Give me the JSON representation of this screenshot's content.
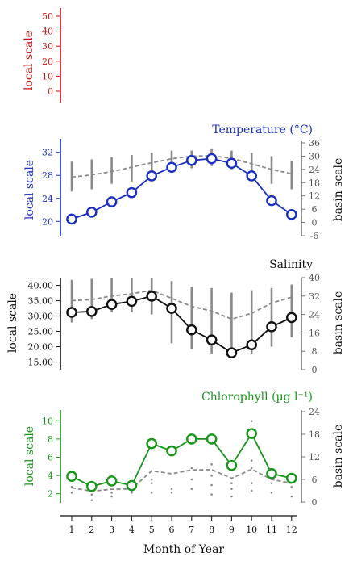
{
  "x_axis": {
    "label": "Month of Year",
    "ticks": [
      "1",
      "2",
      "3",
      "4",
      "5",
      "6",
      "7",
      "8",
      "9",
      "10",
      "11",
      "12"
    ]
  },
  "colors": {
    "red": "#cc1111",
    "blue": "#1a2fbf",
    "black": "#111111",
    "green": "#18951b",
    "gray": "#8a8a8a"
  },
  "panels": [
    {
      "id": "top",
      "title": "",
      "color": "#cc1111",
      "left_label": "local scale",
      "left_ticks": [
        "0",
        "10",
        "20",
        "30",
        "40",
        "50"
      ],
      "left_range": [
        0,
        50
      ],
      "right_label": "",
      "right_ticks": [],
      "right_range": null
    },
    {
      "id": "temperature",
      "title": "Temperature (°C)",
      "color": "#1a2fbf",
      "left_label": "local scale",
      "left_ticks": [
        "20",
        "24",
        "28",
        "32"
      ],
      "left_range": [
        18.5,
        33.5
      ],
      "right_label": "basin scale",
      "right_ticks": [
        "-6",
        "0",
        "6",
        "12",
        "18",
        "24",
        "30",
        "36"
      ],
      "right_range": [
        -6,
        36
      ]
    },
    {
      "id": "salinity",
      "title": "Salinity",
      "color": "#111111",
      "left_label": "local scale",
      "left_ticks": [
        "15.00",
        "20.00",
        "25.00",
        "30.00",
        "35.00",
        "40.00"
      ],
      "left_range": [
        12.5,
        42
      ],
      "right_label": "basin scale",
      "right_ticks": [
        "0",
        "8",
        "16",
        "24",
        "32",
        "40"
      ],
      "right_range": [
        0,
        40
      ]
    },
    {
      "id": "chlorophyll",
      "title": "Chlorophyll (µg l⁻¹)",
      "color": "#18951b",
      "left_label": "local scale",
      "left_ticks": [
        "2",
        "4",
        "6",
        "8",
        "10"
      ],
      "left_range": [
        1,
        11
      ],
      "right_label": "basin scale",
      "right_ticks": [
        "0",
        "6",
        "12",
        "18",
        "24"
      ],
      "right_range": [
        0,
        24
      ]
    }
  ],
  "chart_data": [
    {
      "type": "line",
      "title": "",
      "ylabel": "local scale",
      "ylim": [
        0,
        50
      ],
      "x": [],
      "series": []
    },
    {
      "type": "line",
      "title": "Temperature (°C)",
      "xlabel": "Month of Year",
      "ylabel": "local scale",
      "y2label": "basin scale",
      "ylim": [
        18.5,
        33.5
      ],
      "y2lim": [
        -6,
        36
      ],
      "x": [
        1,
        2,
        3,
        4,
        5,
        6,
        7,
        8,
        9,
        10,
        11,
        12
      ],
      "series": [
        {
          "axis": "left",
          "style": "line-markers",
          "color": "#1a2fbf",
          "values": [
            20.4,
            21.6,
            23.4,
            25.0,
            27.9,
            29.4,
            30.6,
            30.9,
            30.1,
            27.9,
            23.6,
            21.2
          ]
        },
        {
          "axis": "right",
          "style": "dashed",
          "color": "#8a8a8a",
          "values": [
            20.5,
            21.5,
            23.0,
            25.0,
            27.0,
            28.8,
            30.0,
            30.2,
            29.0,
            26.5,
            24.0,
            22.0
          ]
        },
        {
          "axis": "right",
          "style": "range-bars",
          "color": "#8a8a8a",
          "low": [
            14.0,
            15.0,
            17.5,
            18.5,
            21.5,
            22.5,
            24.5,
            25.5,
            24.0,
            19.5,
            17.5,
            15.0
          ],
          "high": [
            27.5,
            28.5,
            29.5,
            30.5,
            31.5,
            32.5,
            32.5,
            33.5,
            32.5,
            31.5,
            30.0,
            28.0
          ]
        }
      ]
    },
    {
      "type": "line",
      "title": "Salinity",
      "xlabel": "Month of Year",
      "ylabel": "local scale",
      "y2label": "basin scale",
      "ylim": [
        12.5,
        42
      ],
      "y2lim": [
        0,
        40
      ],
      "x": [
        1,
        2,
        3,
        4,
        5,
        6,
        7,
        8,
        9,
        10,
        11,
        12
      ],
      "series": [
        {
          "axis": "left",
          "style": "line-markers",
          "color": "#111111",
          "values": [
            31.2,
            31.5,
            33.8,
            34.8,
            36.5,
            32.5,
            25.5,
            22.2,
            18.0,
            20.6,
            26.5,
            29.5
          ]
        },
        {
          "axis": "right",
          "style": "dashed",
          "color": "#8a8a8a",
          "values": [
            30.0,
            30.5,
            32.0,
            33.0,
            34.5,
            31.0,
            27.5,
            25.5,
            22.0,
            24.5,
            29.0,
            31.5
          ]
        },
        {
          "axis": "right",
          "style": "range-bars",
          "color": "#8a8a8a",
          "low": [
            20.5,
            22.0,
            25.0,
            25.0,
            24.0,
            11.5,
            9.0,
            7.0,
            5.5,
            7.0,
            10.0,
            14.0
          ],
          "high": [
            39.0,
            39.5,
            40.0,
            40.0,
            40.0,
            38.5,
            36.0,
            35.5,
            33.5,
            34.5,
            35.5,
            37.0
          ]
        }
      ]
    },
    {
      "type": "line",
      "title": "Chlorophyll (µg l⁻¹)",
      "xlabel": "Month of Year",
      "ylabel": "local scale",
      "y2label": "basin scale",
      "ylim": [
        1,
        11
      ],
      "y2lim": [
        0,
        24
      ],
      "x": [
        1,
        2,
        3,
        4,
        5,
        6,
        7,
        8,
        9,
        10,
        11,
        12
      ],
      "series": [
        {
          "axis": "left",
          "style": "line-markers",
          "color": "#18951b",
          "values": [
            3.9,
            2.8,
            3.4,
            2.9,
            7.5,
            6.7,
            8.0,
            8.0,
            5.1,
            8.6,
            4.2,
            3.7
          ]
        },
        {
          "axis": "right",
          "style": "dashed",
          "color": "#8a8a8a",
          "values": [
            3.8,
            2.9,
            3.4,
            3.5,
            8.3,
            7.5,
            8.5,
            8.6,
            6.3,
            8.7,
            6.0,
            5.0
          ]
        },
        {
          "axis": "right",
          "style": "points",
          "color": "#8a8a8a",
          "points": [
            [
              1,
              2.5
            ],
            [
              1,
              4
            ],
            [
              2,
              0.5
            ],
            [
              2,
              2
            ],
            [
              3,
              1.5
            ],
            [
              3,
              2.5
            ],
            [
              4,
              2.5
            ],
            [
              4,
              3
            ],
            [
              5,
              2.5
            ],
            [
              5,
              5
            ],
            [
              5,
              6
            ],
            [
              6,
              2.5
            ],
            [
              6,
              3.5
            ],
            [
              7,
              3.5
            ],
            [
              7,
              6
            ],
            [
              7,
              9
            ],
            [
              8,
              2
            ],
            [
              8,
              4.5
            ],
            [
              8,
              7
            ],
            [
              8,
              10
            ],
            [
              9,
              1.5
            ],
            [
              9,
              3.5
            ],
            [
              9,
              5
            ],
            [
              10,
              3
            ],
            [
              10,
              5
            ],
            [
              10,
              9
            ],
            [
              10,
              11
            ],
            [
              10,
              21.5
            ],
            [
              11,
              2.5
            ],
            [
              11,
              5
            ],
            [
              12,
              1.5
            ],
            [
              12,
              4
            ]
          ]
        }
      ]
    }
  ]
}
